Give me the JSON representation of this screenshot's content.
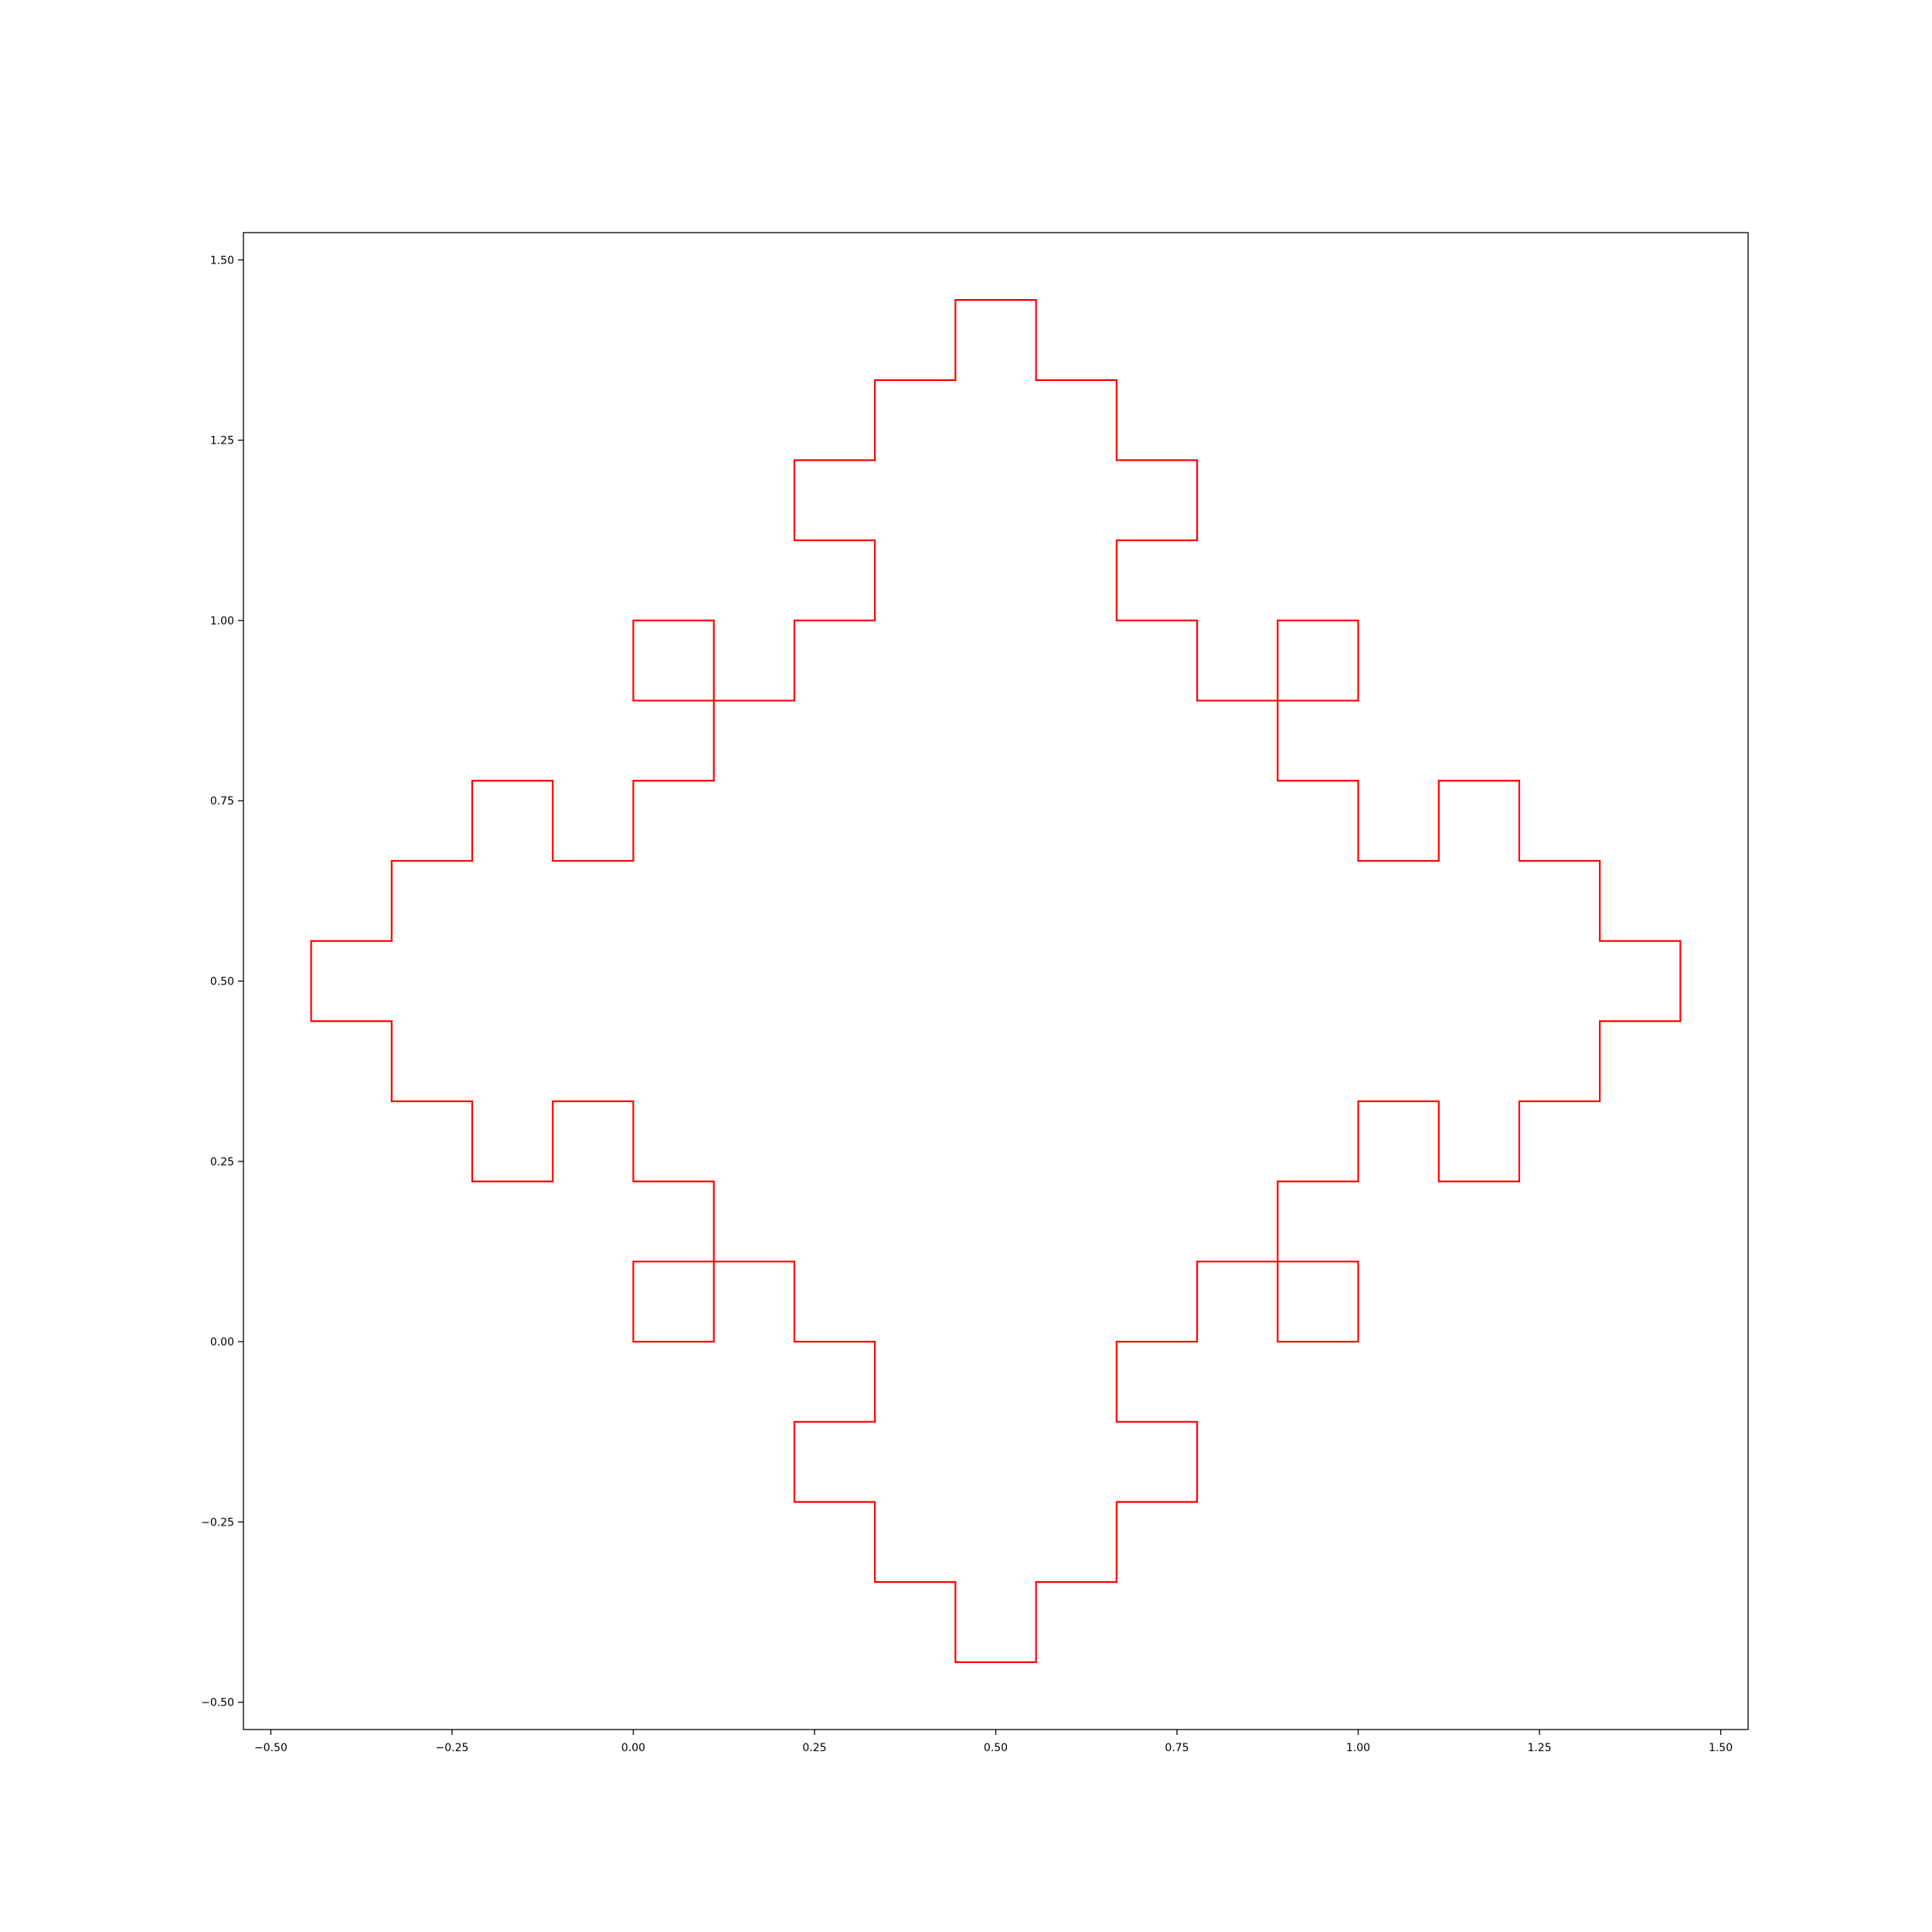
{
  "chart_data": {
    "type": "line",
    "title": "",
    "xlabel": "",
    "ylabel": "",
    "xlim": [
      -0.5378,
      1.5378
    ],
    "ylim": [
      -0.5378,
      1.5378
    ],
    "grid": false,
    "legend": "none",
    "x_ticks": [
      {
        "value": -0.5,
        "label": "−0.50"
      },
      {
        "value": -0.25,
        "label": "−0.25"
      },
      {
        "value": 0.0,
        "label": "0.00"
      },
      {
        "value": 0.25,
        "label": "0.25"
      },
      {
        "value": 0.5,
        "label": "0.50"
      },
      {
        "value": 0.75,
        "label": "0.75"
      },
      {
        "value": 1.0,
        "label": "1.00"
      },
      {
        "value": 1.25,
        "label": "1.25"
      },
      {
        "value": 1.5,
        "label": "1.50"
      }
    ],
    "y_ticks": [
      {
        "value": -0.5,
        "label": "−0.50"
      },
      {
        "value": -0.25,
        "label": "−0.25"
      },
      {
        "value": 0.0,
        "label": "0.00"
      },
      {
        "value": 0.25,
        "label": "0.25"
      },
      {
        "value": 0.5,
        "label": "0.50"
      },
      {
        "value": 0.75,
        "label": "0.75"
      },
      {
        "value": 1.0,
        "label": "1.00"
      },
      {
        "value": 1.25,
        "label": "1.25"
      },
      {
        "value": 1.5,
        "label": "1.50"
      }
    ],
    "series": [
      {
        "color": "#ff0000",
        "closed": true,
        "points": [
          [
            0.0,
            0.0
          ],
          [
            0.1111,
            0.0
          ],
          [
            0.1111,
            0.1111
          ],
          [
            0.2222,
            0.1111
          ],
          [
            0.2222,
            0.0
          ],
          [
            0.3333,
            0.0
          ],
          [
            0.3333,
            -0.1111
          ],
          [
            0.2222,
            -0.1111
          ],
          [
            0.2222,
            -0.2222
          ],
          [
            0.3333,
            -0.2222
          ],
          [
            0.3333,
            -0.3333
          ],
          [
            0.4444,
            -0.3333
          ],
          [
            0.4444,
            -0.4444
          ],
          [
            0.5556,
            -0.4444
          ],
          [
            0.5556,
            -0.3333
          ],
          [
            0.6667,
            -0.3333
          ],
          [
            0.6667,
            -0.2222
          ],
          [
            0.7778,
            -0.2222
          ],
          [
            0.7778,
            -0.1111
          ],
          [
            0.6667,
            -0.1111
          ],
          [
            0.6667,
            0.0
          ],
          [
            0.7778,
            0.0
          ],
          [
            0.7778,
            0.1111
          ],
          [
            0.8889,
            0.1111
          ],
          [
            0.8889,
            0.0
          ],
          [
            1.0,
            0.0
          ],
          [
            1.0,
            0.1111
          ],
          [
            0.8889,
            0.1111
          ],
          [
            0.8889,
            0.2222
          ],
          [
            1.0,
            0.2222
          ],
          [
            1.0,
            0.3333
          ],
          [
            1.1111,
            0.3333
          ],
          [
            1.1111,
            0.2222
          ],
          [
            1.2222,
            0.2222
          ],
          [
            1.2222,
            0.3333
          ],
          [
            1.3333,
            0.3333
          ],
          [
            1.3333,
            0.4444
          ],
          [
            1.4444,
            0.4444
          ],
          [
            1.4444,
            0.5556
          ],
          [
            1.3333,
            0.5556
          ],
          [
            1.3333,
            0.6667
          ],
          [
            1.2222,
            0.6667
          ],
          [
            1.2222,
            0.7778
          ],
          [
            1.1111,
            0.7778
          ],
          [
            1.1111,
            0.6667
          ],
          [
            1.0,
            0.6667
          ],
          [
            1.0,
            0.7778
          ],
          [
            0.8889,
            0.7778
          ],
          [
            0.8889,
            0.8889
          ],
          [
            1.0,
            0.8889
          ],
          [
            1.0,
            1.0
          ],
          [
            0.8889,
            1.0
          ],
          [
            0.8889,
            0.8889
          ],
          [
            0.7778,
            0.8889
          ],
          [
            0.7778,
            1.0
          ],
          [
            0.6667,
            1.0
          ],
          [
            0.6667,
            1.1111
          ],
          [
            0.7778,
            1.1111
          ],
          [
            0.7778,
            1.2222
          ],
          [
            0.6667,
            1.2222
          ],
          [
            0.6667,
            1.3333
          ],
          [
            0.5556,
            1.3333
          ],
          [
            0.5556,
            1.4444
          ],
          [
            0.4444,
            1.4444
          ],
          [
            0.4444,
            1.3333
          ],
          [
            0.3333,
            1.3333
          ],
          [
            0.3333,
            1.2222
          ],
          [
            0.2222,
            1.2222
          ],
          [
            0.2222,
            1.1111
          ],
          [
            0.3333,
            1.1111
          ],
          [
            0.3333,
            1.0
          ],
          [
            0.2222,
            1.0
          ],
          [
            0.2222,
            0.8889
          ],
          [
            0.1111,
            0.8889
          ],
          [
            0.1111,
            1.0
          ],
          [
            0.0,
            1.0
          ],
          [
            0.0,
            0.8889
          ],
          [
            0.1111,
            0.8889
          ],
          [
            0.1111,
            0.7778
          ],
          [
            0.0,
            0.7778
          ],
          [
            0.0,
            0.6667
          ],
          [
            -0.1111,
            0.6667
          ],
          [
            -0.1111,
            0.7778
          ],
          [
            -0.2222,
            0.7778
          ],
          [
            -0.2222,
            0.6667
          ],
          [
            -0.3333,
            0.6667
          ],
          [
            -0.3333,
            0.5556
          ],
          [
            -0.4444,
            0.5556
          ],
          [
            -0.4444,
            0.4444
          ],
          [
            -0.3333,
            0.4444
          ],
          [
            -0.3333,
            0.3333
          ],
          [
            -0.2222,
            0.3333
          ],
          [
            -0.2222,
            0.2222
          ],
          [
            -0.1111,
            0.2222
          ],
          [
            -0.1111,
            0.3333
          ],
          [
            0.0,
            0.3333
          ],
          [
            0.0,
            0.2222
          ],
          [
            0.1111,
            0.2222
          ],
          [
            0.1111,
            0.1111
          ],
          [
            0.0,
            0.1111
          ],
          [
            0.0,
            0.0
          ]
        ]
      }
    ]
  }
}
